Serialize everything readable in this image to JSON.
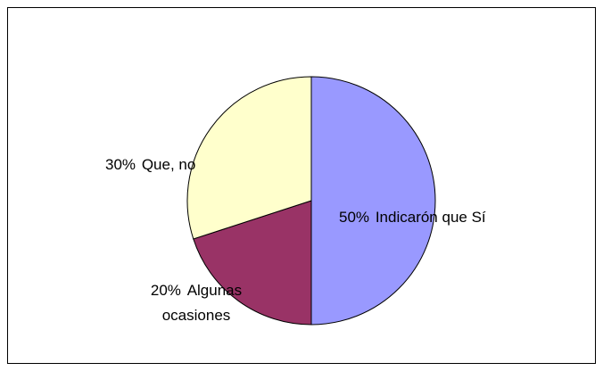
{
  "chart_data": {
    "type": "pie",
    "categories": [
      "Indicarón que Sí",
      "Algunas ocasiones",
      "Que, no"
    ],
    "values": [
      50,
      20,
      30
    ],
    "value_labels": [
      "50%",
      "20%",
      "30%"
    ],
    "colors": [
      "#9999ff",
      "#993366",
      "#ffffcc"
    ]
  }
}
